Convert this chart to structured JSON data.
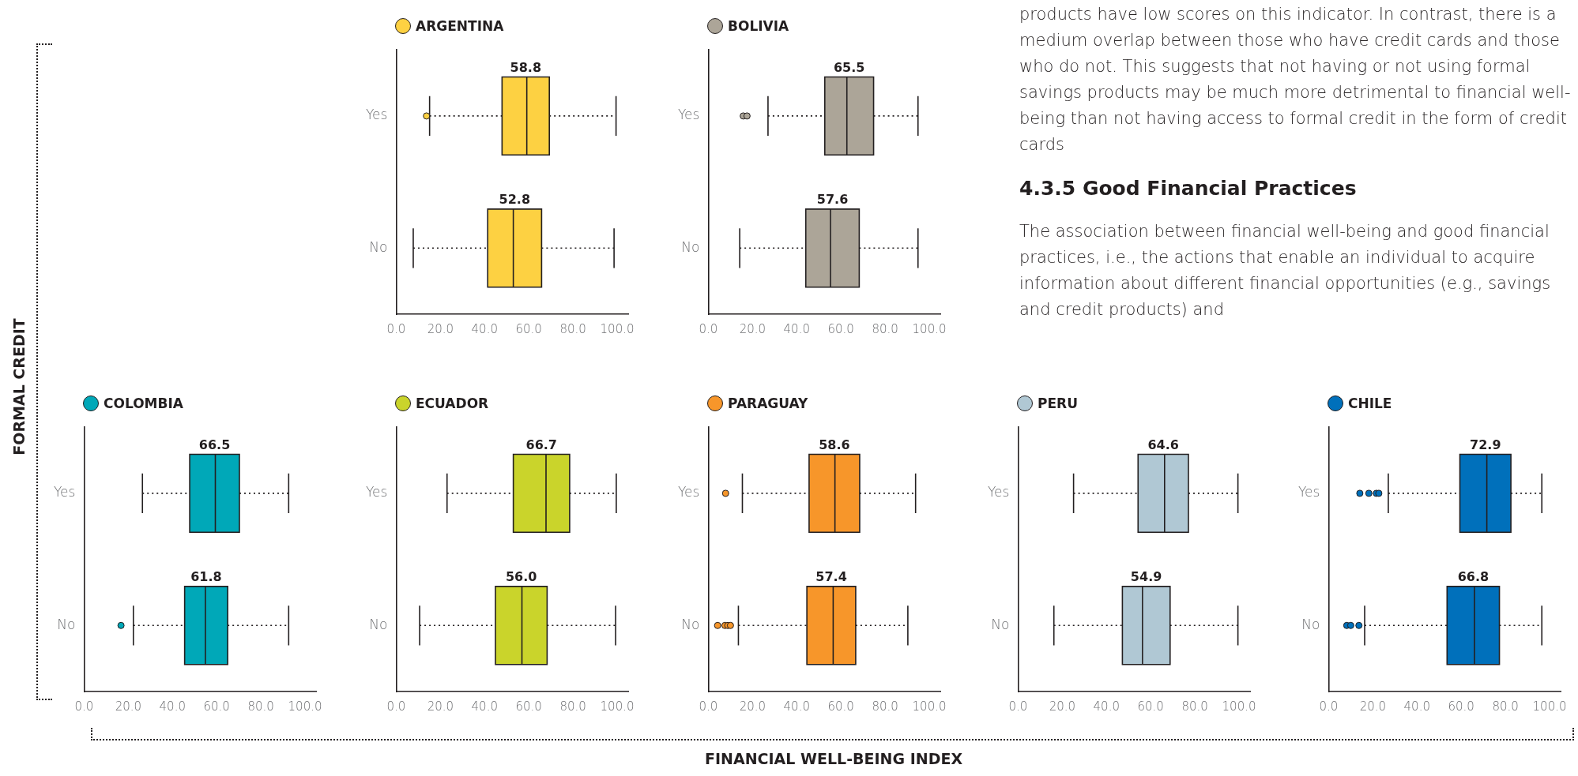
{
  "chart_data": [
    {
      "type": "box",
      "title": "ARGENTINA",
      "orientation": "horizontal",
      "categories": [
        "Yes",
        "No"
      ],
      "color": "#fdd142",
      "xlim": [
        0,
        105
      ],
      "xticks": [
        {
          "value": 0,
          "label": "0.0"
        },
        {
          "value": 20,
          "label": "20.0"
        },
        {
          "value": 40,
          "label": "40.0"
        },
        {
          "value": 60,
          "label": "60.0"
        },
        {
          "value": 80,
          "label": "80.0"
        },
        {
          "value": 100,
          "label": "100.0"
        }
      ],
      "boxes": [
        {
          "low": 15.1,
          "q1": 47.9,
          "median": 59.1,
          "q3": 69.3,
          "high": 99.5,
          "outliers": [
            13.7
          ]
        },
        {
          "low": 7.7,
          "q1": 41.4,
          "median": 53.0,
          "q3": 65.8,
          "high": 98.6
        }
      ],
      "annotations": [
        "58.8",
        "52.8"
      ]
    },
    {
      "type": "box",
      "title": "BOLIVIA",
      "orientation": "horizontal",
      "categories": [
        "Yes",
        "No"
      ],
      "color": "#aca598",
      "xlim": [
        0,
        105
      ],
      "xticks": [
        {
          "value": 0,
          "label": "0.0"
        },
        {
          "value": 20,
          "label": "20.0"
        },
        {
          "value": 40,
          "label": "40.0"
        },
        {
          "value": 60,
          "label": "60.0"
        },
        {
          "value": 80,
          "label": "80.0"
        },
        {
          "value": 100,
          "label": "100.0"
        }
      ],
      "boxes": [
        {
          "low": 27.0,
          "q1": 52.7,
          "median": 62.7,
          "q3": 74.8,
          "high": 94.9,
          "outliers": [
            15.8,
            17.5
          ]
        },
        {
          "low": 14.2,
          "q1": 44.1,
          "median": 55.3,
          "q3": 68.3,
          "high": 94.9
        }
      ],
      "annotations": [
        "65.5",
        "57.6"
      ]
    },
    {
      "type": "box",
      "title": "COLOMBIA",
      "orientation": "horizontal",
      "categories": [
        "Yes",
        "No"
      ],
      "color": "#00a8b8",
      "xlim": [
        0,
        105
      ],
      "xticks": [
        {
          "value": 0,
          "label": "0.0"
        },
        {
          "value": 20,
          "label": "20.0"
        },
        {
          "value": 40,
          "label": "40.0"
        },
        {
          "value": 60,
          "label": "60.0"
        },
        {
          "value": 80,
          "label": "80.0"
        },
        {
          "value": 100,
          "label": "100.0"
        }
      ],
      "boxes": [
        {
          "low": 26.4,
          "q1": 47.8,
          "median": 59.4,
          "q3": 70.3,
          "high": 92.6
        },
        {
          "low": 22.3,
          "q1": 45.5,
          "median": 54.9,
          "q3": 65.0,
          "high": 92.6,
          "outliers": [
            16.7
          ]
        }
      ],
      "annotations": [
        "66.5",
        "61.8"
      ]
    },
    {
      "type": "box",
      "title": "ECUADOR",
      "orientation": "horizontal",
      "categories": [
        "Yes",
        "No"
      ],
      "color": "#cad42b",
      "xlim": [
        0,
        105
      ],
      "xticks": [
        {
          "value": 0,
          "label": "0.0"
        },
        {
          "value": 20,
          "label": "20.0"
        },
        {
          "value": 40,
          "label": "40.0"
        },
        {
          "value": 60,
          "label": "60.0"
        },
        {
          "value": 80,
          "label": "80.0"
        },
        {
          "value": 100,
          "label": "100.0"
        }
      ],
      "boxes": [
        {
          "low": 23.0,
          "q1": 53.0,
          "median": 67.8,
          "q3": 78.5,
          "high": 99.6
        },
        {
          "low": 10.6,
          "q1": 44.9,
          "median": 56.9,
          "q3": 68.3,
          "high": 99.3
        }
      ],
      "annotations": [
        "66.7",
        "56.0"
      ]
    },
    {
      "type": "box",
      "title": "PARAGUAY",
      "orientation": "horizontal",
      "categories": [
        "Yes",
        "No"
      ],
      "color": "#f7962a",
      "xlim": [
        0,
        105
      ],
      "xticks": [
        {
          "value": 0,
          "label": "0.0"
        },
        {
          "value": 20,
          "label": "20.0"
        },
        {
          "value": 40,
          "label": "40.0"
        },
        {
          "value": 60,
          "label": "60.0"
        },
        {
          "value": 80,
          "label": "80.0"
        },
        {
          "value": 100,
          "label": "100.0"
        }
      ],
      "boxes": [
        {
          "low": 15.4,
          "q1": 45.6,
          "median": 57.3,
          "q3": 68.5,
          "high": 93.8,
          "outliers": [
            7.8
          ]
        },
        {
          "low": 13.6,
          "q1": 44.6,
          "median": 56.5,
          "q3": 66.7,
          "high": 90.3,
          "outliers": [
            4.2,
            7.5,
            8.8,
            10.0
          ]
        }
      ],
      "annotations": [
        "58.6",
        "57.4"
      ]
    },
    {
      "type": "box",
      "title": "PERU",
      "orientation": "horizontal",
      "categories": [
        "Yes",
        "No"
      ],
      "color": "#b0c8d4",
      "xlim": [
        0,
        105
      ],
      "xticks": [
        {
          "value": 0,
          "label": "0.0"
        },
        {
          "value": 20,
          "label": "20.0"
        },
        {
          "value": 40,
          "label": "40.0"
        },
        {
          "value": 60,
          "label": "60.0"
        },
        {
          "value": 80,
          "label": "80.0"
        },
        {
          "value": 100,
          "label": "100.0"
        }
      ],
      "boxes": [
        {
          "low": 25.1,
          "q1": 54.3,
          "median": 66.3,
          "q3": 77.1,
          "high": 99.5
        },
        {
          "low": 16.2,
          "q1": 47.2,
          "median": 56.3,
          "q3": 68.8,
          "high": 99.5
        }
      ],
      "annotations": [
        "64.6",
        "54.9"
      ]
    },
    {
      "type": "box",
      "title": "CHILE",
      "orientation": "horizontal",
      "categories": [
        "Yes",
        "No"
      ],
      "color": "#0070bb",
      "xlim": [
        0,
        105
      ],
      "xticks": [
        {
          "value": 0,
          "label": "0.0"
        },
        {
          "value": 20,
          "label": "20.0"
        },
        {
          "value": 40,
          "label": "40.0"
        },
        {
          "value": 60,
          "label": "60.0"
        },
        {
          "value": 80,
          "label": "80.0"
        },
        {
          "value": 100,
          "label": "100.0"
        }
      ],
      "boxes": [
        {
          "low": 27.0,
          "q1": 59.4,
          "median": 71.6,
          "q3": 82.5,
          "high": 96.5,
          "outliers": [
            14.1,
            18.2,
            21.6,
            22.7
          ]
        },
        {
          "low": 16.3,
          "q1": 53.6,
          "median": 66.0,
          "q3": 77.3,
          "high": 96.5,
          "outliers": [
            8.2,
            10.0,
            13.7
          ]
        }
      ],
      "annotations": [
        "72.9",
        "66.8"
      ]
    },
    {
      "type": "other",
      "xlabel": "FINANCIAL WELL-BEING INDEX",
      "ylabel": "FORMAL CREDIT"
    },
    {
      "type": "other",
      "title": "4.3.5 Good Financial Practices",
      "annotations": [
        "products have low scores on this indicator. In contrast, there is a medium overlap between those who have credit cards and those who do not. This suggests that not having or not using formal savings products may be much more detrimental to financial well-being than not having access to formal credit in the form of credit cards",
        "The association between financial well-being and good financial practices, i.e., the actions that enable an individual to acquire information about different financial opportunities (e.g., savings and credit products) and"
      ]
    }
  ]
}
